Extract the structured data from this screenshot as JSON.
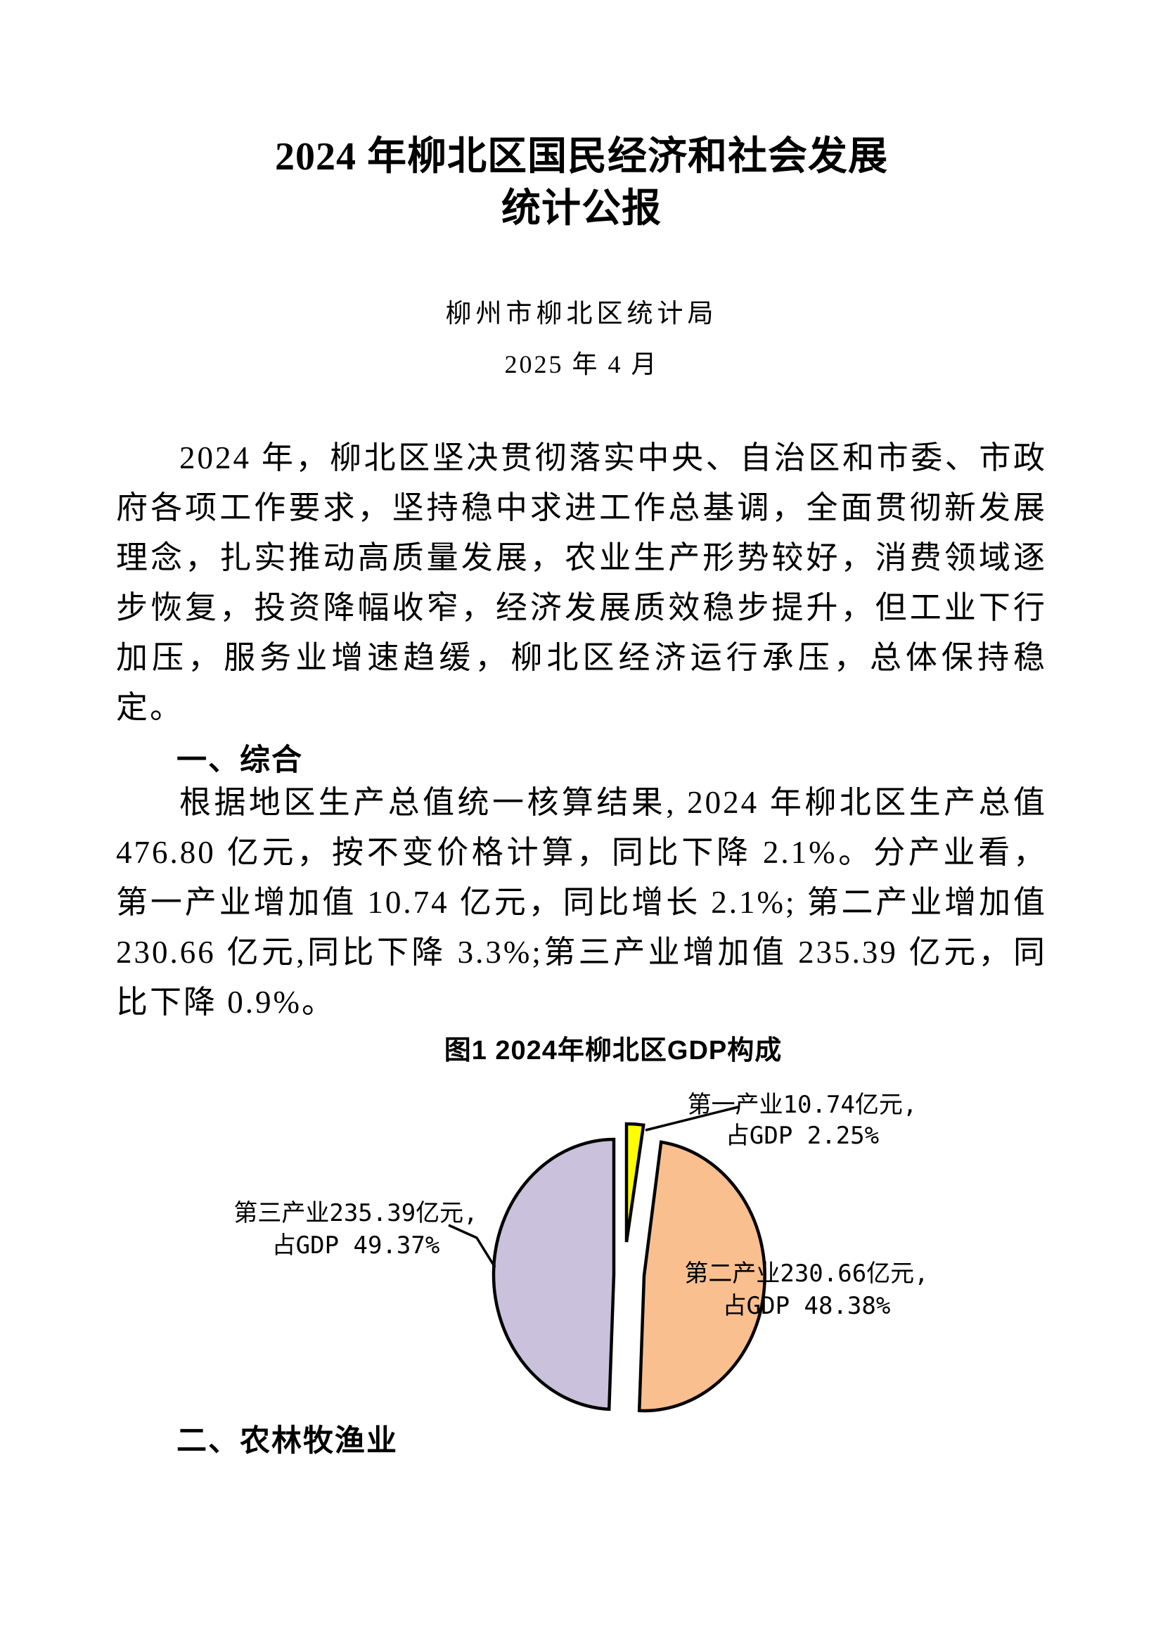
{
  "page": {
    "title_line1": "2024 年柳北区国民经济和社会发展",
    "title_line2": "统计公报",
    "subtitle": "柳州市柳北区统计局",
    "date": "2025 年 4 月"
  },
  "paragraphs": {
    "intro": "2024 年，柳北区坚决贯彻落实中央、自治区和市委、市政府各项工作要求，坚持稳中求进工作总基调，全面贯彻新发展理念，扎实推动高质量发展，农业生产形势较好，消费领域逐步恢复，投资降幅收窄，经济发展质效稳步提升，但工业下行加压，服务业增速趋缓，柳北区经济运行承压，总体保持稳定。",
    "section1_heading": "一、综合",
    "section1_body": "根据地区生产总值统一核算结果, 2024 年柳北区生产总值 476.80 亿元，按不变价格计算，同比下降 2.1%。分产业看，第一产业增加值 10.74 亿元，同比增长 2.1%; 第二产业增加值 230.66 亿元,同比下降 3.3%;第三产业增加值 235.39 亿元，同比下降 0.9%。",
    "section2_heading": "二、农林牧渔业"
  },
  "chart_data": {
    "type": "pie",
    "title": "图1 2024年柳北区GDP构成",
    "unit": "亿元",
    "total_gdp": 476.8,
    "start_angle_deg": -90,
    "direction": "clockwise",
    "stroke_color": "#000000",
    "slices": [
      {
        "name": "第一产业",
        "value": 10.74,
        "pct_of_gdp": 2.25,
        "color": "#FFFF00",
        "label_line1": "第一产业10.74亿元,",
        "label_line2": "占GDP 2.25%"
      },
      {
        "name": "第二产业",
        "value": 230.66,
        "pct_of_gdp": 48.38,
        "color": "#FABF8F",
        "label_line1": "第二产业230.66亿元,",
        "label_line2": "占GDP 48.38%"
      },
      {
        "name": "第三产业",
        "value": 235.39,
        "pct_of_gdp": 49.37,
        "color": "#CAC1DC",
        "label_line1": "第三产业235.39亿元,",
        "label_line2": "占GDP 49.37%"
      }
    ]
  }
}
